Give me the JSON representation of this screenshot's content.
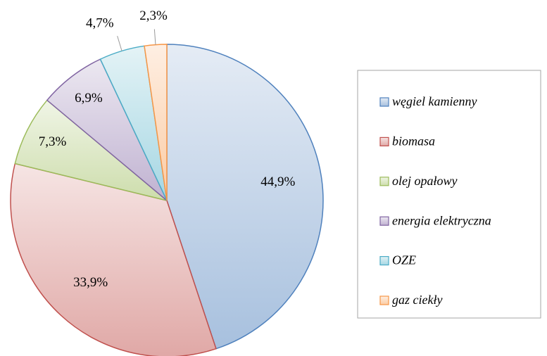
{
  "chart_data": {
    "type": "pie",
    "categories": [
      "węgiel kamienny",
      "biomasa",
      "olej opałowy",
      "energia elektryczna",
      "OZE",
      "gaz ciekły"
    ],
    "values": [
      44.9,
      33.9,
      7.3,
      6.9,
      4.7,
      2.3
    ],
    "value_labels": [
      "44,9%",
      "33,9%",
      "7,3%",
      "6,9%",
      "4,7%",
      "2,3%"
    ],
    "colors": [
      "#4f81bd",
      "#c0504d",
      "#9bbb59",
      "#8064a2",
      "#4bacc6",
      "#f79646"
    ],
    "legend": "right"
  }
}
